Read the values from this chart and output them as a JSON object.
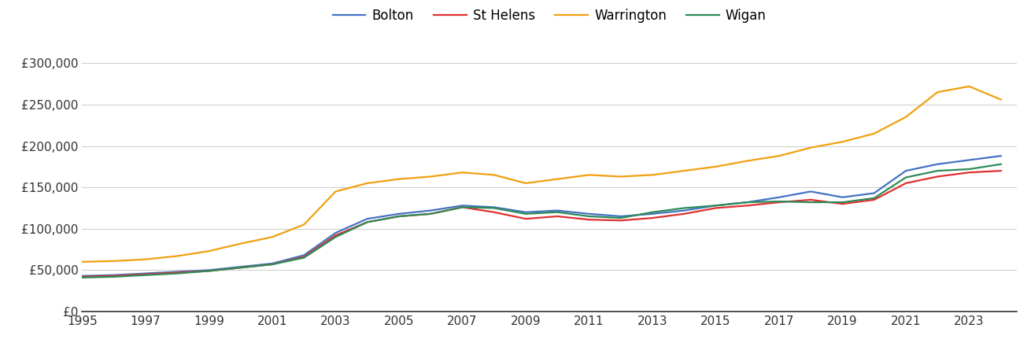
{
  "years": [
    1995,
    1996,
    1997,
    1998,
    1999,
    2000,
    2001,
    2002,
    2003,
    2004,
    2005,
    2006,
    2007,
    2008,
    2009,
    2010,
    2011,
    2012,
    2013,
    2014,
    2015,
    2016,
    2017,
    2018,
    2019,
    2020,
    2021,
    2022,
    2023,
    2024
  ],
  "Bolton": [
    43000,
    44000,
    46000,
    48000,
    50000,
    54000,
    58000,
    68000,
    95000,
    112000,
    118000,
    122000,
    128000,
    126000,
    120000,
    122000,
    118000,
    115000,
    118000,
    122000,
    128000,
    132000,
    138000,
    145000,
    138000,
    143000,
    170000,
    178000,
    183000,
    188000
  ],
  "St Helens": [
    42000,
    43000,
    45000,
    47000,
    49000,
    53000,
    57000,
    66000,
    92000,
    108000,
    115000,
    118000,
    126000,
    120000,
    112000,
    115000,
    111000,
    110000,
    113000,
    118000,
    125000,
    128000,
    132000,
    135000,
    130000,
    135000,
    155000,
    163000,
    168000,
    170000
  ],
  "Warrington": [
    60000,
    61000,
    63000,
    67000,
    73000,
    82000,
    90000,
    105000,
    145000,
    155000,
    160000,
    163000,
    168000,
    165000,
    155000,
    160000,
    165000,
    163000,
    165000,
    170000,
    175000,
    182000,
    188000,
    198000,
    205000,
    215000,
    235000,
    265000,
    272000,
    256000
  ],
  "Wigan": [
    41000,
    42000,
    44000,
    46000,
    49000,
    53000,
    57000,
    65000,
    90000,
    108000,
    115000,
    118000,
    126000,
    125000,
    118000,
    120000,
    115000,
    113000,
    120000,
    125000,
    128000,
    132000,
    133000,
    132000,
    132000,
    137000,
    162000,
    170000,
    172000,
    178000
  ],
  "colors": {
    "Bolton": "#4472c4",
    "St Helens": "#e03030",
    "Warrington": "#f0a010",
    "Wigan": "#2e8b57"
  },
  "ylim": [
    0,
    325000
  ],
  "yticks": [
    0,
    50000,
    100000,
    150000,
    200000,
    250000,
    300000
  ],
  "ytick_labels": [
    "£0",
    "£50,000",
    "£100,000",
    "£150,000",
    "£200,000",
    "£250,000",
    "£300,000"
  ],
  "xtick_years": [
    1995,
    1997,
    1999,
    2001,
    2003,
    2005,
    2007,
    2009,
    2011,
    2013,
    2015,
    2017,
    2019,
    2021,
    2023
  ],
  "background_color": "#ffffff",
  "grid_color": "#d0d0d0",
  "legend_labels": [
    "Bolton",
    "St Helens",
    "Warrington",
    "Wigan"
  ]
}
